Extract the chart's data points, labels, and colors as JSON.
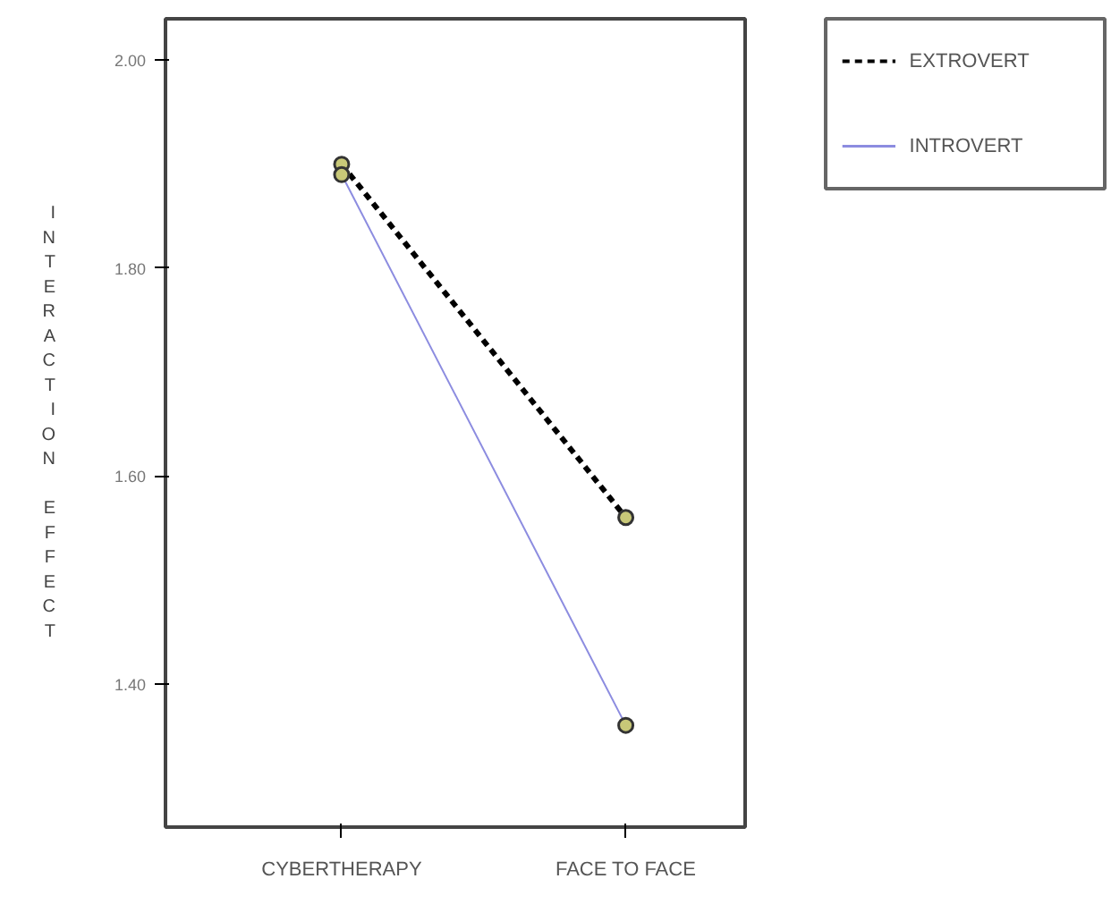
{
  "chart_data": {
    "type": "line",
    "ylabel": "INTERACTION EFFECT",
    "categories": [
      "CYBERTHERAPY",
      "FACE TO FACE"
    ],
    "series": [
      {
        "name": "EXTROVERT",
        "color": "#000000",
        "line_style": "dashed",
        "values": [
          1.9,
          1.56
        ]
      },
      {
        "name": "INTROVERT",
        "color": "#8c8ce0",
        "line_style": "solid",
        "values": [
          1.89,
          1.36
        ]
      }
    ],
    "ylim": [
      1.262,
      2.04
    ],
    "yticks": [
      {
        "value": 1.4,
        "label": "1.40"
      },
      {
        "value": 1.6,
        "label": "1.60"
      },
      {
        "value": 1.8,
        "label": "1.80"
      },
      {
        "value": 2.0,
        "label": "2.00"
      }
    ],
    "marker": "circle",
    "grid": false,
    "legend": "top right"
  }
}
